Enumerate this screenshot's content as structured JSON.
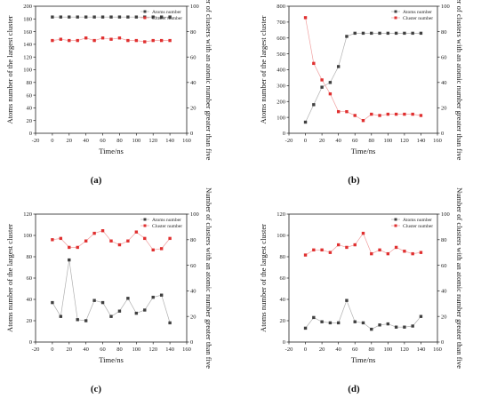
{
  "colors": {
    "atoms": "#404040",
    "cluster": "#e03030",
    "axis": "#222222"
  },
  "legend_labels": {
    "atoms": "Atoms number",
    "cluster": "Cluster number"
  },
  "chart_data": [
    {
      "panel": "(a)",
      "type": "line",
      "legend": "top-right",
      "xlabel": "Time/ns",
      "ylabel": "Atoms number of the largest cluster",
      "y2label": "Number of clusters with an atomic number greater than five",
      "xlim": [
        -20,
        160
      ],
      "xticks": [
        -20,
        0,
        20,
        40,
        60,
        80,
        100,
        120,
        140,
        160
      ],
      "ylim": [
        0,
        200
      ],
      "yticks": [
        0,
        20,
        40,
        60,
        80,
        100,
        120,
        140,
        160,
        180,
        200
      ],
      "y2lim": [
        0,
        100
      ],
      "y2ticks": [
        0,
        20,
        40,
        60,
        80,
        100
      ],
      "x": [
        0,
        10,
        20,
        30,
        40,
        50,
        60,
        70,
        80,
        90,
        100,
        110,
        120,
        130,
        140
      ],
      "series": [
        {
          "name": "Atoms number",
          "axis": "left",
          "values": [
            183,
            183,
            183,
            183,
            183,
            183,
            183,
            183,
            183,
            183,
            183,
            183,
            183,
            183,
            183
          ]
        },
        {
          "name": "Cluster number",
          "axis": "right",
          "values": [
            73,
            74,
            73,
            73,
            75,
            73,
            75,
            74,
            75,
            73,
            73,
            72,
            73,
            73,
            73
          ]
        }
      ]
    },
    {
      "panel": "(b)",
      "type": "line",
      "legend": "top-right",
      "xlabel": "Time/ns",
      "ylabel": "Atoms number of the largest cluster",
      "y2label": "Number of clusters with an atomic number greater than five",
      "xlim": [
        -20,
        160
      ],
      "xticks": [
        -20,
        0,
        20,
        40,
        60,
        80,
        100,
        120,
        140,
        160
      ],
      "ylim": [
        0,
        800
      ],
      "yticks": [
        0,
        100,
        200,
        300,
        400,
        500,
        600,
        700,
        800
      ],
      "y2lim": [
        0,
        100
      ],
      "y2ticks": [
        0,
        20,
        40,
        60,
        80,
        100
      ],
      "x": [
        0,
        10,
        20,
        30,
        40,
        50,
        60,
        70,
        80,
        90,
        100,
        110,
        120,
        130,
        140
      ],
      "series": [
        {
          "name": "Atoms number",
          "axis": "left",
          "values": [
            70,
            180,
            290,
            320,
            420,
            610,
            630,
            630,
            630,
            630,
            630,
            630,
            630,
            630,
            630
          ]
        },
        {
          "name": "Cluster number",
          "axis": "right",
          "values": [
            91,
            55,
            42,
            31,
            17,
            17,
            14,
            10,
            15,
            14,
            15,
            15,
            15,
            15,
            14
          ]
        }
      ]
    },
    {
      "panel": "(c)",
      "type": "line",
      "legend": "top-right",
      "xlabel": "Time/ns",
      "ylabel": "Atoms number of the largest cluster",
      "y2label": "Number of clusters with an atomic number greater than five",
      "xlim": [
        -20,
        160
      ],
      "xticks": [
        -20,
        0,
        20,
        40,
        60,
        80,
        100,
        120,
        140,
        160
      ],
      "ylim": [
        0,
        120
      ],
      "yticks": [
        0,
        20,
        40,
        60,
        80,
        100,
        120
      ],
      "y2lim": [
        0,
        100
      ],
      "y2ticks": [
        0,
        20,
        40,
        60,
        80,
        100
      ],
      "x": [
        0,
        10,
        20,
        30,
        40,
        50,
        60,
        70,
        80,
        90,
        100,
        110,
        120,
        130,
        140
      ],
      "series": [
        {
          "name": "Atoms number",
          "axis": "left",
          "values": [
            37,
            24,
            77,
            21,
            20,
            39,
            37,
            24,
            29,
            41,
            27,
            30,
            42,
            44,
            18
          ]
        },
        {
          "name": "Cluster number",
          "axis": "right",
          "values": [
            80,
            81,
            74,
            74,
            79,
            85,
            87,
            79,
            76,
            79,
            86,
            81,
            72,
            73,
            81
          ]
        }
      ]
    },
    {
      "panel": "(d)",
      "type": "line",
      "legend": "top-right",
      "xlabel": "Time/ns",
      "ylabel": "Atoms number of the largest cluster",
      "y2label": "Number of clusters with an atomic number greater than five",
      "xlim": [
        -20,
        160
      ],
      "xticks": [
        -20,
        0,
        20,
        40,
        60,
        80,
        100,
        120,
        140,
        160
      ],
      "ylim": [
        0,
        120
      ],
      "yticks": [
        0,
        20,
        40,
        60,
        80,
        100,
        120
      ],
      "y2lim": [
        0,
        100
      ],
      "y2ticks": [
        0,
        20,
        40,
        60,
        80,
        100
      ],
      "x": [
        0,
        10,
        20,
        30,
        40,
        50,
        60,
        70,
        80,
        90,
        100,
        110,
        120,
        130,
        140
      ],
      "series": [
        {
          "name": "Atoms number",
          "axis": "left",
          "values": [
            13,
            23,
            19,
            18,
            18,
            39,
            19,
            18,
            12,
            16,
            17,
            14,
            14,
            15,
            24
          ]
        },
        {
          "name": "Cluster number",
          "axis": "right",
          "values": [
            68,
            72,
            72,
            70,
            76,
            74,
            76,
            85,
            69,
            72,
            69,
            74,
            71,
            69,
            70
          ]
        }
      ]
    }
  ]
}
